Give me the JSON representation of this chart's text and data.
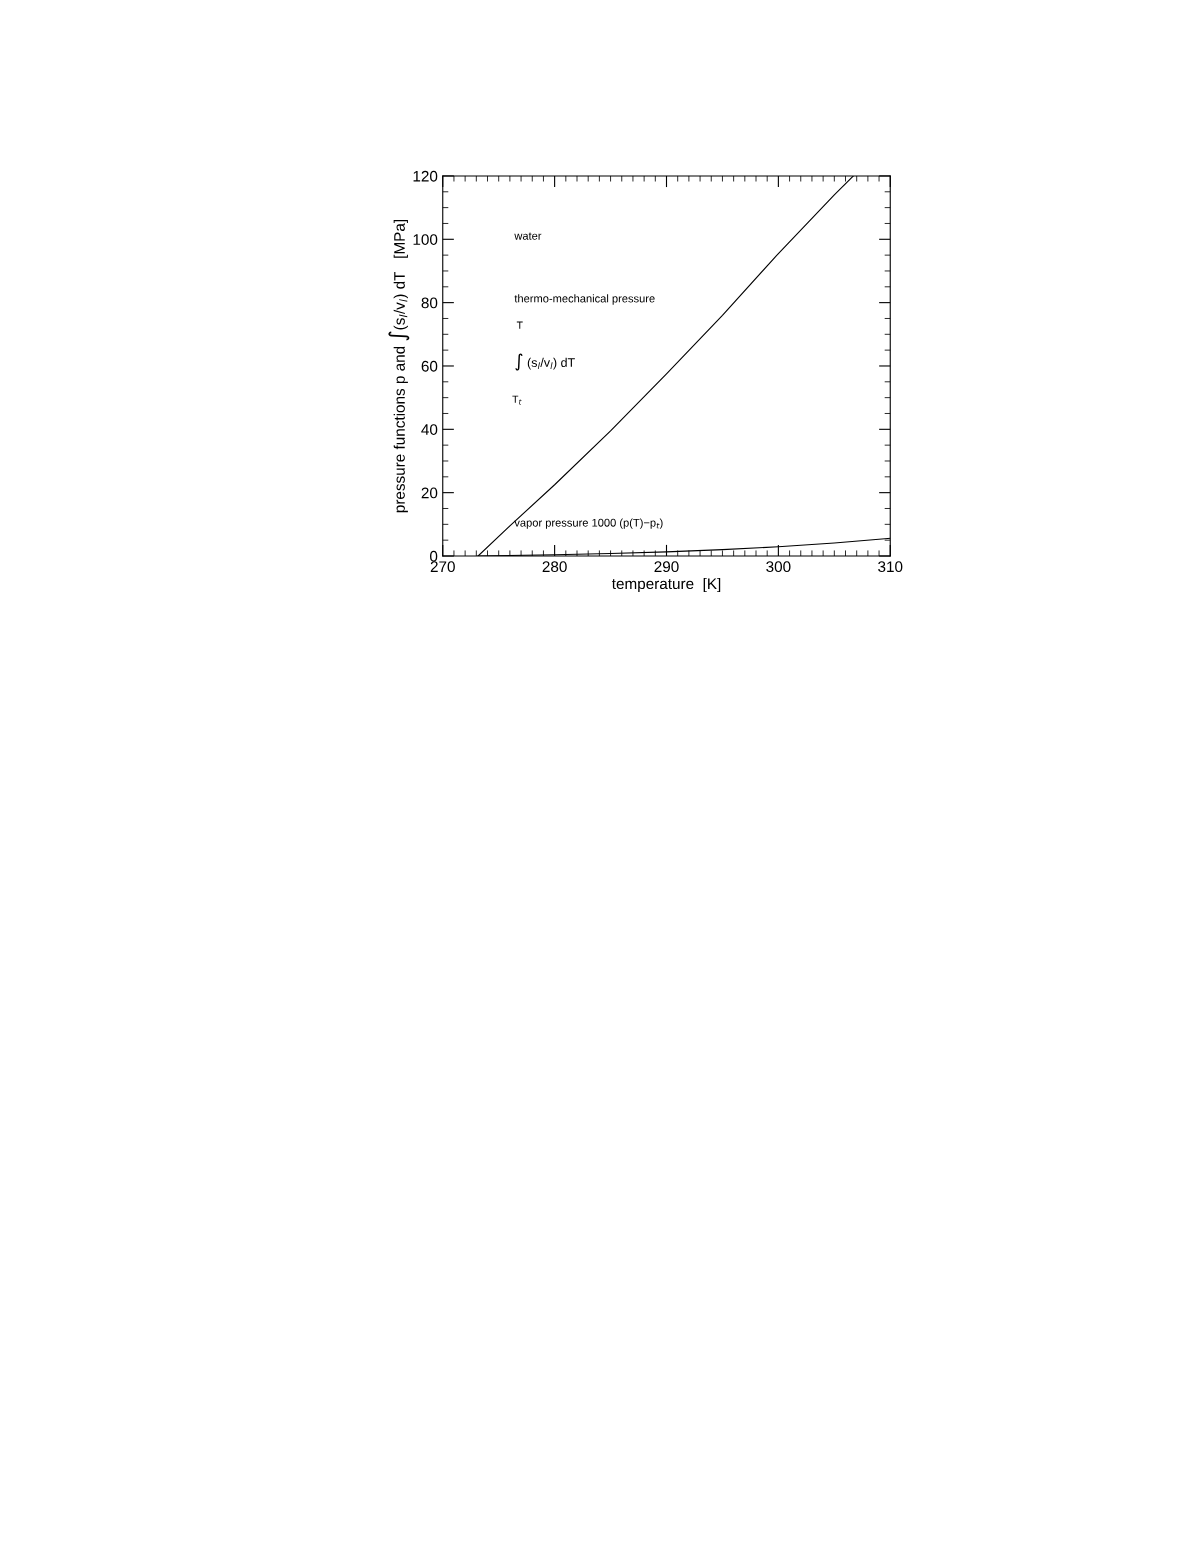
{
  "chart_data": {
    "type": "line",
    "xlabel": "temperature  [K]",
    "ylabel": "pressure functions p and ∫(s$_{l}$/v$_{l}$) dT   [MPa]",
    "series": [
      {
        "color": "#000000",
        "x": [
          273.16,
          276,
          280,
          285,
          290,
          295,
          300,
          305,
          306.7
        ],
        "values": [
          0,
          9.5,
          22.5,
          39.5,
          57.5,
          76,
          95.5,
          114,
          120
        ]
      },
      {
        "color": "#000000",
        "x": [
          273.16,
          280,
          285,
          290,
          295,
          300,
          305,
          310
        ],
        "values": [
          0,
          0.4,
          0.8,
          1.3,
          2.0,
          2.9,
          4.1,
          5.6
        ]
      }
    ],
    "annotations": [
      "water",
      "thermo-mechanical pressure",
      "T",
      "∫ (s$_{l}$/v$_{l}$) dT",
      "T$_{t}$",
      "vapor pressure 1000 (p(T)−p$_{t}$)"
    ],
    "xlim": [
      270,
      310
    ],
    "xticks": [
      270,
      280,
      290,
      300,
      310
    ],
    "ylim": [
      0,
      120
    ],
    "yticks": [
      0,
      20,
      40,
      60,
      80,
      100,
      120
    ],
    "grid": false,
    "legend": false,
    "marker": "none",
    "line_style": "solid"
  }
}
